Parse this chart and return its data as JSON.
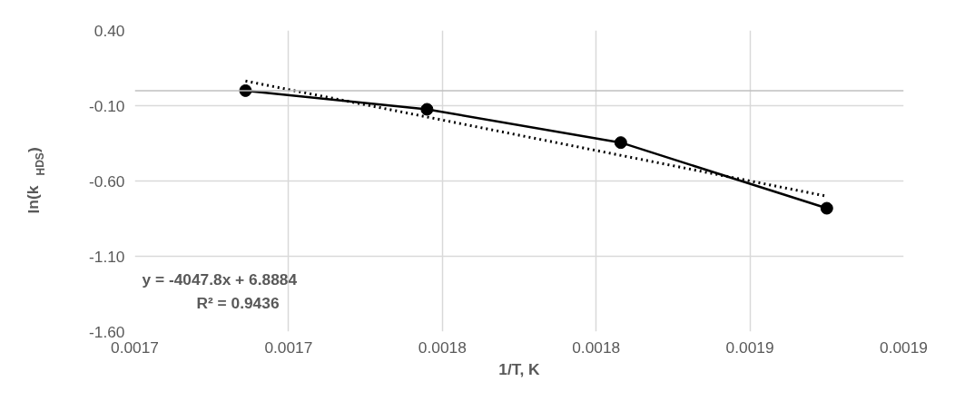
{
  "chart_data": {
    "type": "line",
    "xlabel": "1/T, K",
    "ylabel": "ln(k$_{HDS}$)",
    "x": [
      0.001686,
      0.001745,
      0.001808,
      0.001875
    ],
    "series": [
      {
        "color": "#000000",
        "values": [
          0.0,
          -0.124,
          -0.345,
          -0.781
        ],
        "marker": "circle",
        "line_style": "solid"
      },
      {
        "color": "#000000",
        "x": [
          0.001686,
          0.001875
        ],
        "values": [
          0.064,
          -0.701
        ],
        "marker": "none",
        "line_style": "dotted"
      }
    ],
    "xlim": [
      0.00165,
      0.0019
    ],
    "xticks": [
      {
        "value": 0.00165,
        "label": "0.0017"
      },
      {
        "value": 0.0017,
        "label": "0.0017"
      },
      {
        "value": 0.00175,
        "label": "0.0018"
      },
      {
        "value": 0.0018,
        "label": "0.0018"
      },
      {
        "value": 0.00185,
        "label": "0.0019"
      },
      {
        "value": 0.0019,
        "label": "0.0019"
      }
    ],
    "ylim": [
      -1.6,
      0.4
    ],
    "yticks": [
      {
        "value": -1.6,
        "label": "-1.60"
      },
      {
        "value": -1.1,
        "label": "-1.10"
      },
      {
        "value": -0.6,
        "label": "-0.60"
      },
      {
        "value": -0.1,
        "label": "-0.10"
      },
      {
        "value": 0.4,
        "label": "0.40"
      }
    ],
    "grid": true,
    "ref_lines": [
      {
        "axis": "y",
        "value": 0,
        "color": "#bfbfbf"
      }
    ],
    "annotations": [
      "y = -4047.8x + 6.8884",
      "R² = 0.9436"
    ]
  }
}
